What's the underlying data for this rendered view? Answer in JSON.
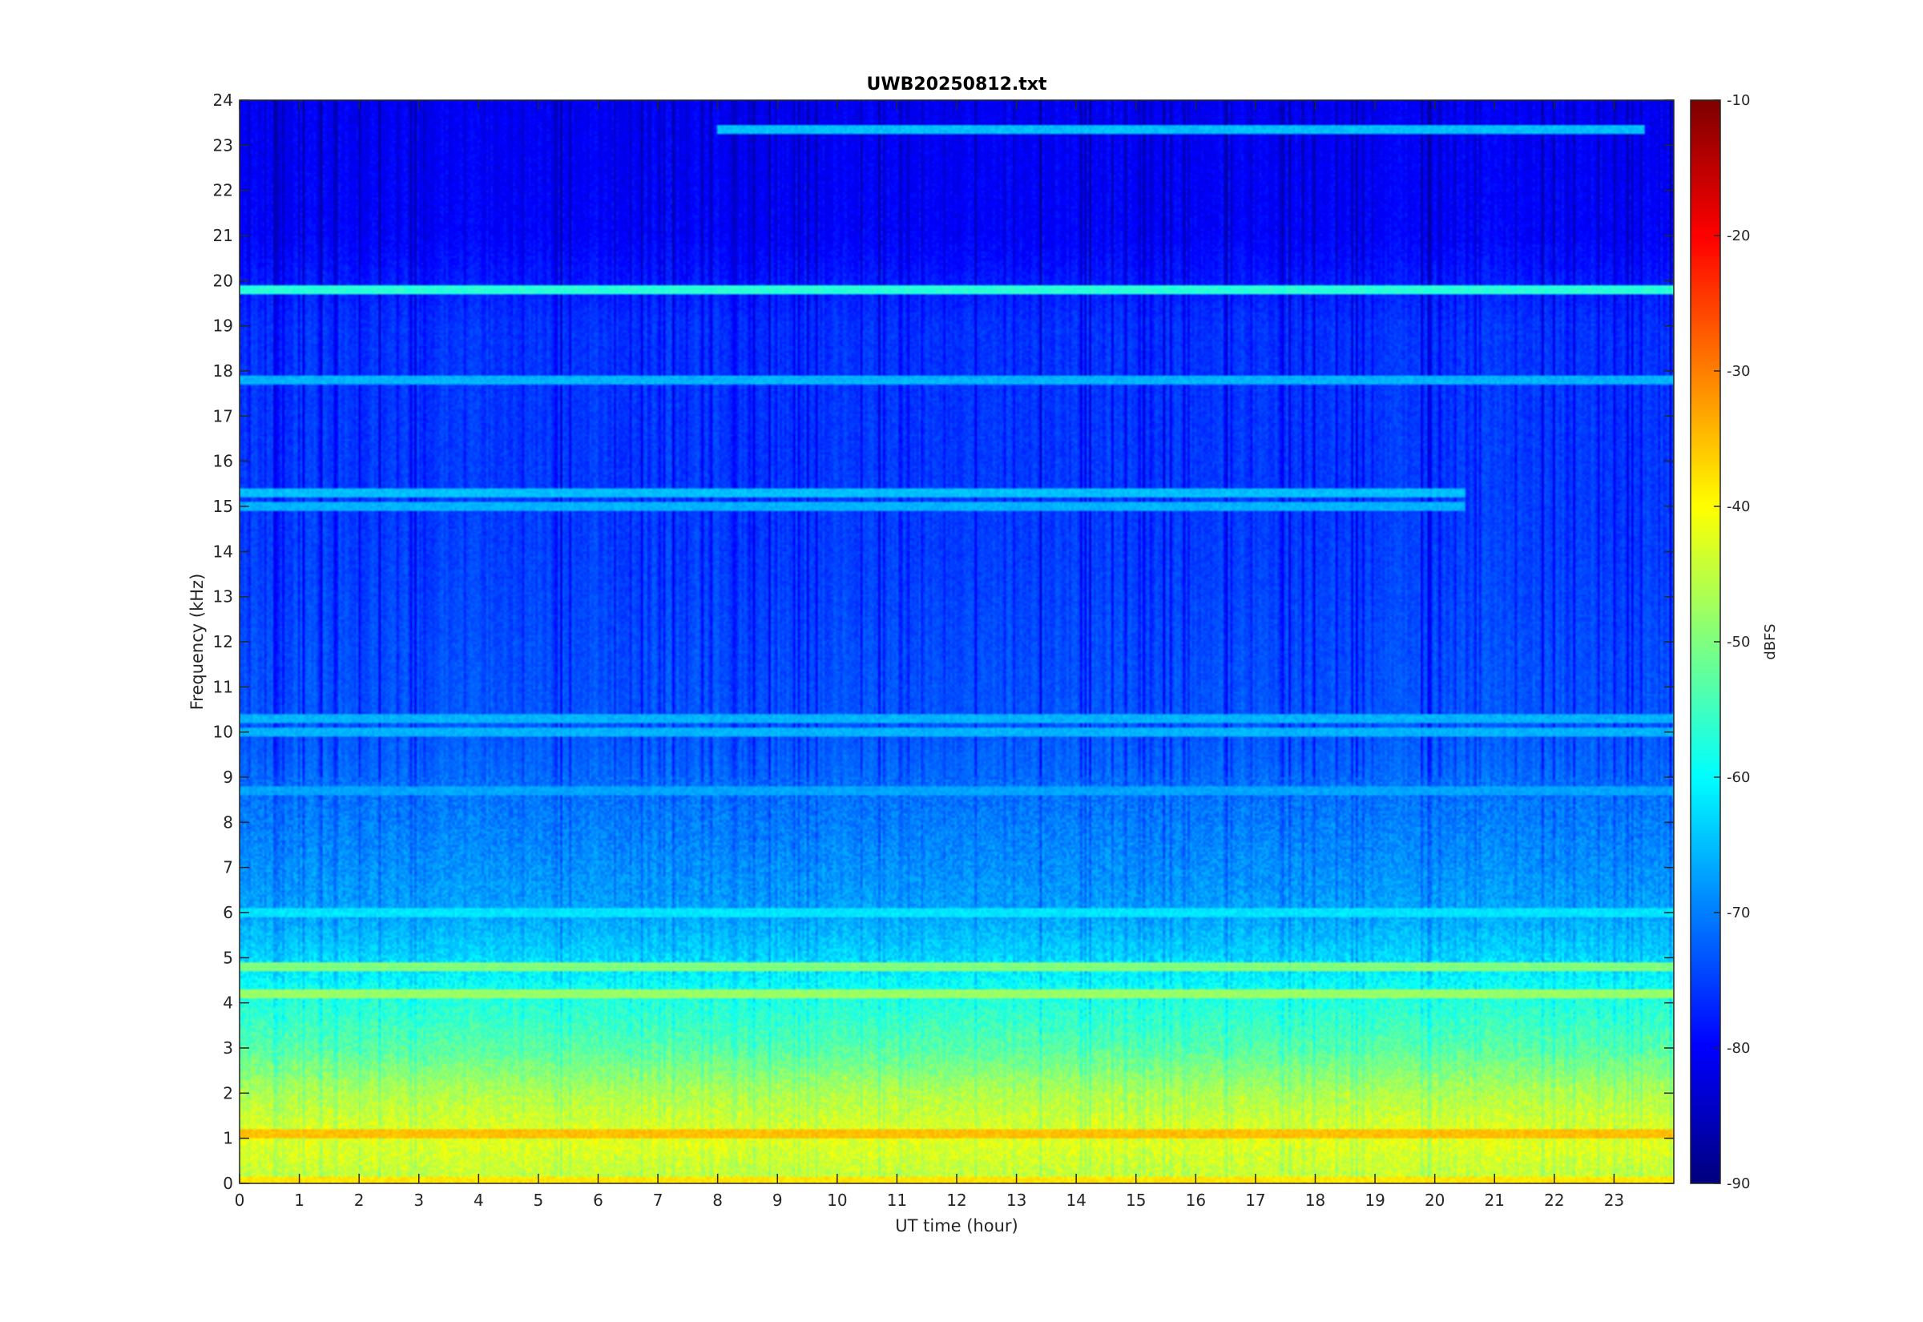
{
  "chart_data": {
    "type": "heatmap",
    "title": "UWB20250812.txt",
    "xlabel": "UT time (hour)",
    "ylabel": "Frequency (kHz)",
    "xlim": [
      0,
      24
    ],
    "ylim": [
      0,
      24
    ],
    "x_ticks": [
      0,
      1,
      2,
      3,
      4,
      5,
      6,
      7,
      8,
      9,
      10,
      11,
      12,
      13,
      14,
      15,
      16,
      17,
      18,
      19,
      20,
      21,
      22,
      23
    ],
    "y_ticks": [
      0,
      1,
      2,
      3,
      4,
      5,
      6,
      7,
      8,
      9,
      10,
      11,
      12,
      13,
      14,
      15,
      16,
      17,
      18,
      19,
      20,
      21,
      22,
      23,
      24
    ],
    "colorbar": {
      "label": "dBFS",
      "range": [
        -90,
        -10
      ],
      "ticks": [
        -10,
        -20,
        -30,
        -40,
        -50,
        -60,
        -70,
        -80,
        -90
      ],
      "colormap": "jet"
    },
    "background_level_profile_dBFS": [
      {
        "freq_khz": 0,
        "level": -45
      },
      {
        "freq_khz": 1,
        "level": -42
      },
      {
        "freq_khz": 2,
        "level": -46
      },
      {
        "freq_khz": 3,
        "level": -53
      },
      {
        "freq_khz": 4,
        "level": -57
      },
      {
        "freq_khz": 5,
        "level": -63
      },
      {
        "freq_khz": 6,
        "level": -67
      },
      {
        "freq_khz": 8,
        "level": -70
      },
      {
        "freq_khz": 10,
        "level": -73
      },
      {
        "freq_khz": 14,
        "level": -75
      },
      {
        "freq_khz": 19,
        "level": -76
      },
      {
        "freq_khz": 21,
        "level": -80
      },
      {
        "freq_khz": 24,
        "level": -81
      }
    ],
    "persistent_lines": [
      {
        "freq_khz": 19.8,
        "level": -57,
        "t_start": 0,
        "t_end": 24
      },
      {
        "freq_khz": 23.35,
        "level": -65,
        "t_start": 8,
        "t_end": 23.5
      },
      {
        "freq_khz": 17.8,
        "level": -66,
        "t_start": 0,
        "t_end": 24
      },
      {
        "freq_khz": 15.3,
        "level": -65,
        "t_start": 0,
        "t_end": 20.5
      },
      {
        "freq_khz": 15.0,
        "level": -66,
        "t_start": 0,
        "t_end": 20.5
      },
      {
        "freq_khz": 10.3,
        "level": -66,
        "t_start": 0,
        "t_end": 24
      },
      {
        "freq_khz": 10.0,
        "level": -66,
        "t_start": 0,
        "t_end": 24
      },
      {
        "freq_khz": 8.7,
        "level": -67,
        "t_start": 0,
        "t_end": 24
      },
      {
        "freq_khz": 6.0,
        "level": -62,
        "t_start": 0,
        "t_end": 24
      },
      {
        "freq_khz": 4.8,
        "level": -50,
        "t_start": 0,
        "t_end": 24
      },
      {
        "freq_khz": 4.2,
        "level": -48,
        "t_start": 0,
        "t_end": 24
      },
      {
        "freq_khz": 1.1,
        "level": -35,
        "t_start": 0,
        "t_end": 24
      },
      {
        "freq_khz": 0.05,
        "level": -38,
        "t_start": 0,
        "t_end": 24
      }
    ]
  }
}
